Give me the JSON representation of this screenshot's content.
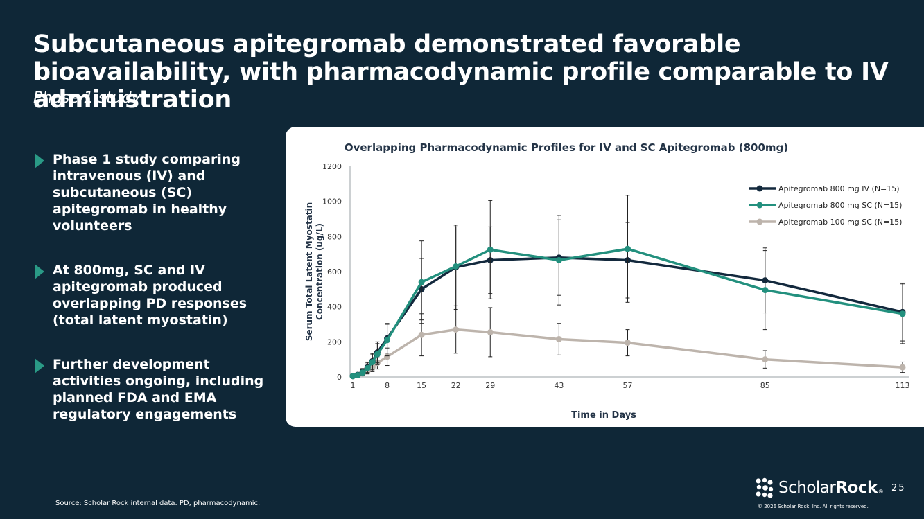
{
  "slide": {
    "title": "Subcutaneous apitegromab demonstrated favorable bioavailability, with pharmacodynamic profile comparable to IV administration",
    "subtitle": "Phase 1 study",
    "bullets": [
      "Phase 1 study comparing intravenous (IV) and subcutaneous (SC) apitegromab in healthy volunteers",
      "At 800mg, SC and IV apitegromab produced overlapping PD responses (total latent myostatin)",
      "Further development activities ongoing, including planned FDA and EMA regulatory engagements"
    ],
    "source": "Source: Scholar Rock internal data. PD, pharmacodynamic.",
    "logo": {
      "name_light": "Scholar",
      "name_bold": "Rock",
      "tm": "®"
    },
    "page_number": "25",
    "copyright": "© 2026 Scholar Rock, Inc. All rights reserved."
  },
  "colors": {
    "background": "#0f2737",
    "iv": "#13293d",
    "sc800": "#23907e",
    "sc100": "#bdb4ac",
    "accent": "#2a9a86"
  },
  "chart_data": {
    "type": "line",
    "title": "Overlapping Pharmacodynamic Profiles for IV and SC Apitegromab (800mg)",
    "xlabel": "Time in Days",
    "ylabel": "Serum Total Latent Myostatin Concentration (ug/L)",
    "ylabel_lines": [
      "Serum Total Latent Myostatin",
      "Concentration (ug/L)"
    ],
    "ylim": [
      0,
      1200
    ],
    "yticks": [
      0,
      200,
      400,
      600,
      800,
      1000,
      1200
    ],
    "xlim": [
      1,
      113
    ],
    "xticks": [
      1,
      8,
      15,
      22,
      29,
      43,
      57,
      85,
      113
    ],
    "legend_position": "top-right",
    "series": [
      {
        "name": "Apitegromab 800 mg IV (N=15)",
        "color": "#13293d",
        "x": [
          1,
          2,
          3,
          4,
          5,
          6,
          8,
          15,
          22,
          29,
          43,
          57,
          85,
          113
        ],
        "y": [
          5,
          12,
          30,
          55,
          90,
          140,
          220,
          500,
          625,
          665,
          680,
          665,
          550,
          370
        ],
        "err": [
          4,
          8,
          18,
          30,
          45,
          60,
          85,
          175,
          240,
          190,
          215,
          215,
          185,
          165
        ]
      },
      {
        "name": "Apitegromab 800 mg SC (N=15)",
        "color": "#23907e",
        "x": [
          1,
          2,
          3,
          4,
          5,
          6,
          8,
          15,
          22,
          29,
          43,
          57,
          85,
          113
        ],
        "y": [
          5,
          10,
          25,
          50,
          85,
          130,
          210,
          540,
          630,
          725,
          665,
          730,
          495,
          360
        ],
        "err": [
          4,
          8,
          18,
          30,
          45,
          60,
          90,
          235,
          225,
          280,
          255,
          305,
          225,
          170
        ]
      },
      {
        "name": "Apitegromab 100 mg SC (N=15)",
        "color": "#bdb4ac",
        "x": [
          1,
          2,
          3,
          4,
          5,
          6,
          8,
          15,
          22,
          29,
          43,
          57,
          85,
          113
        ],
        "y": [
          5,
          10,
          20,
          35,
          55,
          80,
          115,
          240,
          270,
          255,
          215,
          195,
          100,
          55
        ],
        "err": [
          3,
          6,
          10,
          18,
          25,
          35,
          50,
          120,
          135,
          140,
          90,
          75,
          50,
          30
        ]
      }
    ]
  }
}
